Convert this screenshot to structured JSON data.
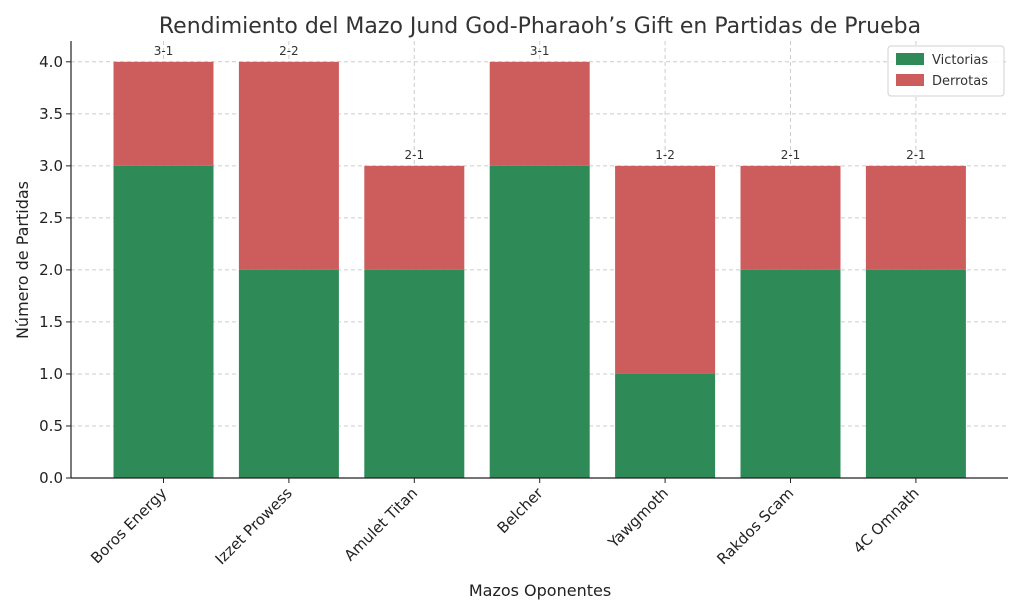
{
  "chart_data": {
    "type": "bar",
    "stacked": true,
    "title": "Rendimiento del Mazo Jund God-Pharaoh’s Gift en Partidas de Prueba",
    "xlabel": "Mazos Oponentes",
    "ylabel": "Número de Partidas",
    "categories": [
      "Boros Energy",
      "Izzet Prowess",
      "Amulet Titan",
      "Belcher",
      "Yawgmoth",
      "Rakdos Scam",
      "4C Omnath"
    ],
    "series": [
      {
        "name": "Victorias",
        "color": "#2e8b57",
        "values": [
          3,
          2,
          2,
          3,
          1,
          2,
          2
        ]
      },
      {
        "name": "Derrotas",
        "color": "#cd5c5c",
        "values": [
          1,
          2,
          1,
          1,
          2,
          1,
          1
        ]
      }
    ],
    "bar_labels": [
      "3-1",
      "2-2",
      "2-1",
      "3-1",
      "1-2",
      "2-1",
      "2-1"
    ],
    "ylim": [
      0,
      4.2
    ],
    "yticks": [
      "0.0",
      "0.5",
      "1.0",
      "1.5",
      "2.0",
      "2.5",
      "3.0",
      "3.5",
      "4.0"
    ],
    "grid": true,
    "legend_position": "top-right"
  }
}
